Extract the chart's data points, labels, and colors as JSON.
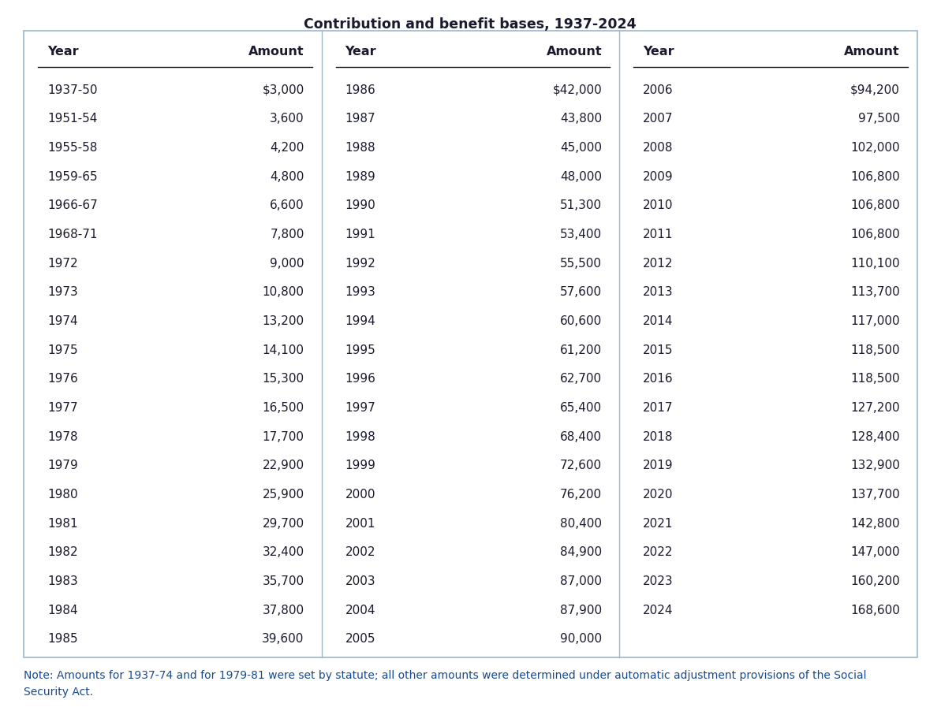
{
  "title": "Contribution and benefit bases, 1937-2024",
  "note_line1": "Note: Amounts for 1937-74 and for 1979-81 were set by statute; all other amounts were determined under automatic adjustment provisions of the Social",
  "note_line2": "Security Act.",
  "col1_years": [
    "1937-50",
    "1951-54",
    "1955-58",
    "1959-65",
    "1966-67",
    "1968-71",
    "1972",
    "1973",
    "1974",
    "1975",
    "1976",
    "1977",
    "1978",
    "1979",
    "1980",
    "1981",
    "1982",
    "1983",
    "1984",
    "1985"
  ],
  "col1_amounts": [
    "$3,000",
    "3,600",
    "4,200",
    "4,800",
    "6,600",
    "7,800",
    "9,000",
    "10,800",
    "13,200",
    "14,100",
    "15,300",
    "16,500",
    "17,700",
    "22,900",
    "25,900",
    "29,700",
    "32,400",
    "35,700",
    "37,800",
    "39,600"
  ],
  "col2_years": [
    "1986",
    "1987",
    "1988",
    "1989",
    "1990",
    "1991",
    "1992",
    "1993",
    "1994",
    "1995",
    "1996",
    "1997",
    "1998",
    "1999",
    "2000",
    "2001",
    "2002",
    "2003",
    "2004",
    "2005"
  ],
  "col2_amounts": [
    "$42,000",
    "43,800",
    "45,000",
    "48,000",
    "51,300",
    "53,400",
    "55,500",
    "57,600",
    "60,600",
    "61,200",
    "62,700",
    "65,400",
    "68,400",
    "72,600",
    "76,200",
    "80,400",
    "84,900",
    "87,000",
    "87,900",
    "90,000"
  ],
  "col3_years": [
    "2006",
    "2007",
    "2008",
    "2009",
    "2010",
    "2011",
    "2012",
    "2013",
    "2014",
    "2015",
    "2016",
    "2017",
    "2018",
    "2019",
    "2020",
    "2021",
    "2022",
    "2023",
    "2024"
  ],
  "col3_amounts": [
    "$94,200",
    "97,500",
    "102,000",
    "106,800",
    "106,800",
    "106,800",
    "110,100",
    "113,700",
    "117,000",
    "118,500",
    "118,500",
    "127,200",
    "128,400",
    "132,900",
    "137,700",
    "142,800",
    "147,000",
    "160,200",
    "168,600"
  ],
  "title_color": "#1a1a2e",
  "header_color": "#1a1a2e",
  "data_color": "#1a1a2e",
  "note_color": "#1a4a8a",
  "border_color": "#9ab8cc",
  "divider_color": "#9ab8cc",
  "bg_color": "#ffffff",
  "table_bg": "#ffffff",
  "header_underline_color": "#1a1a2e",
  "title_fontsize": 12.5,
  "header_fontsize": 11.5,
  "data_fontsize": 11.0,
  "note_fontsize": 10.0
}
